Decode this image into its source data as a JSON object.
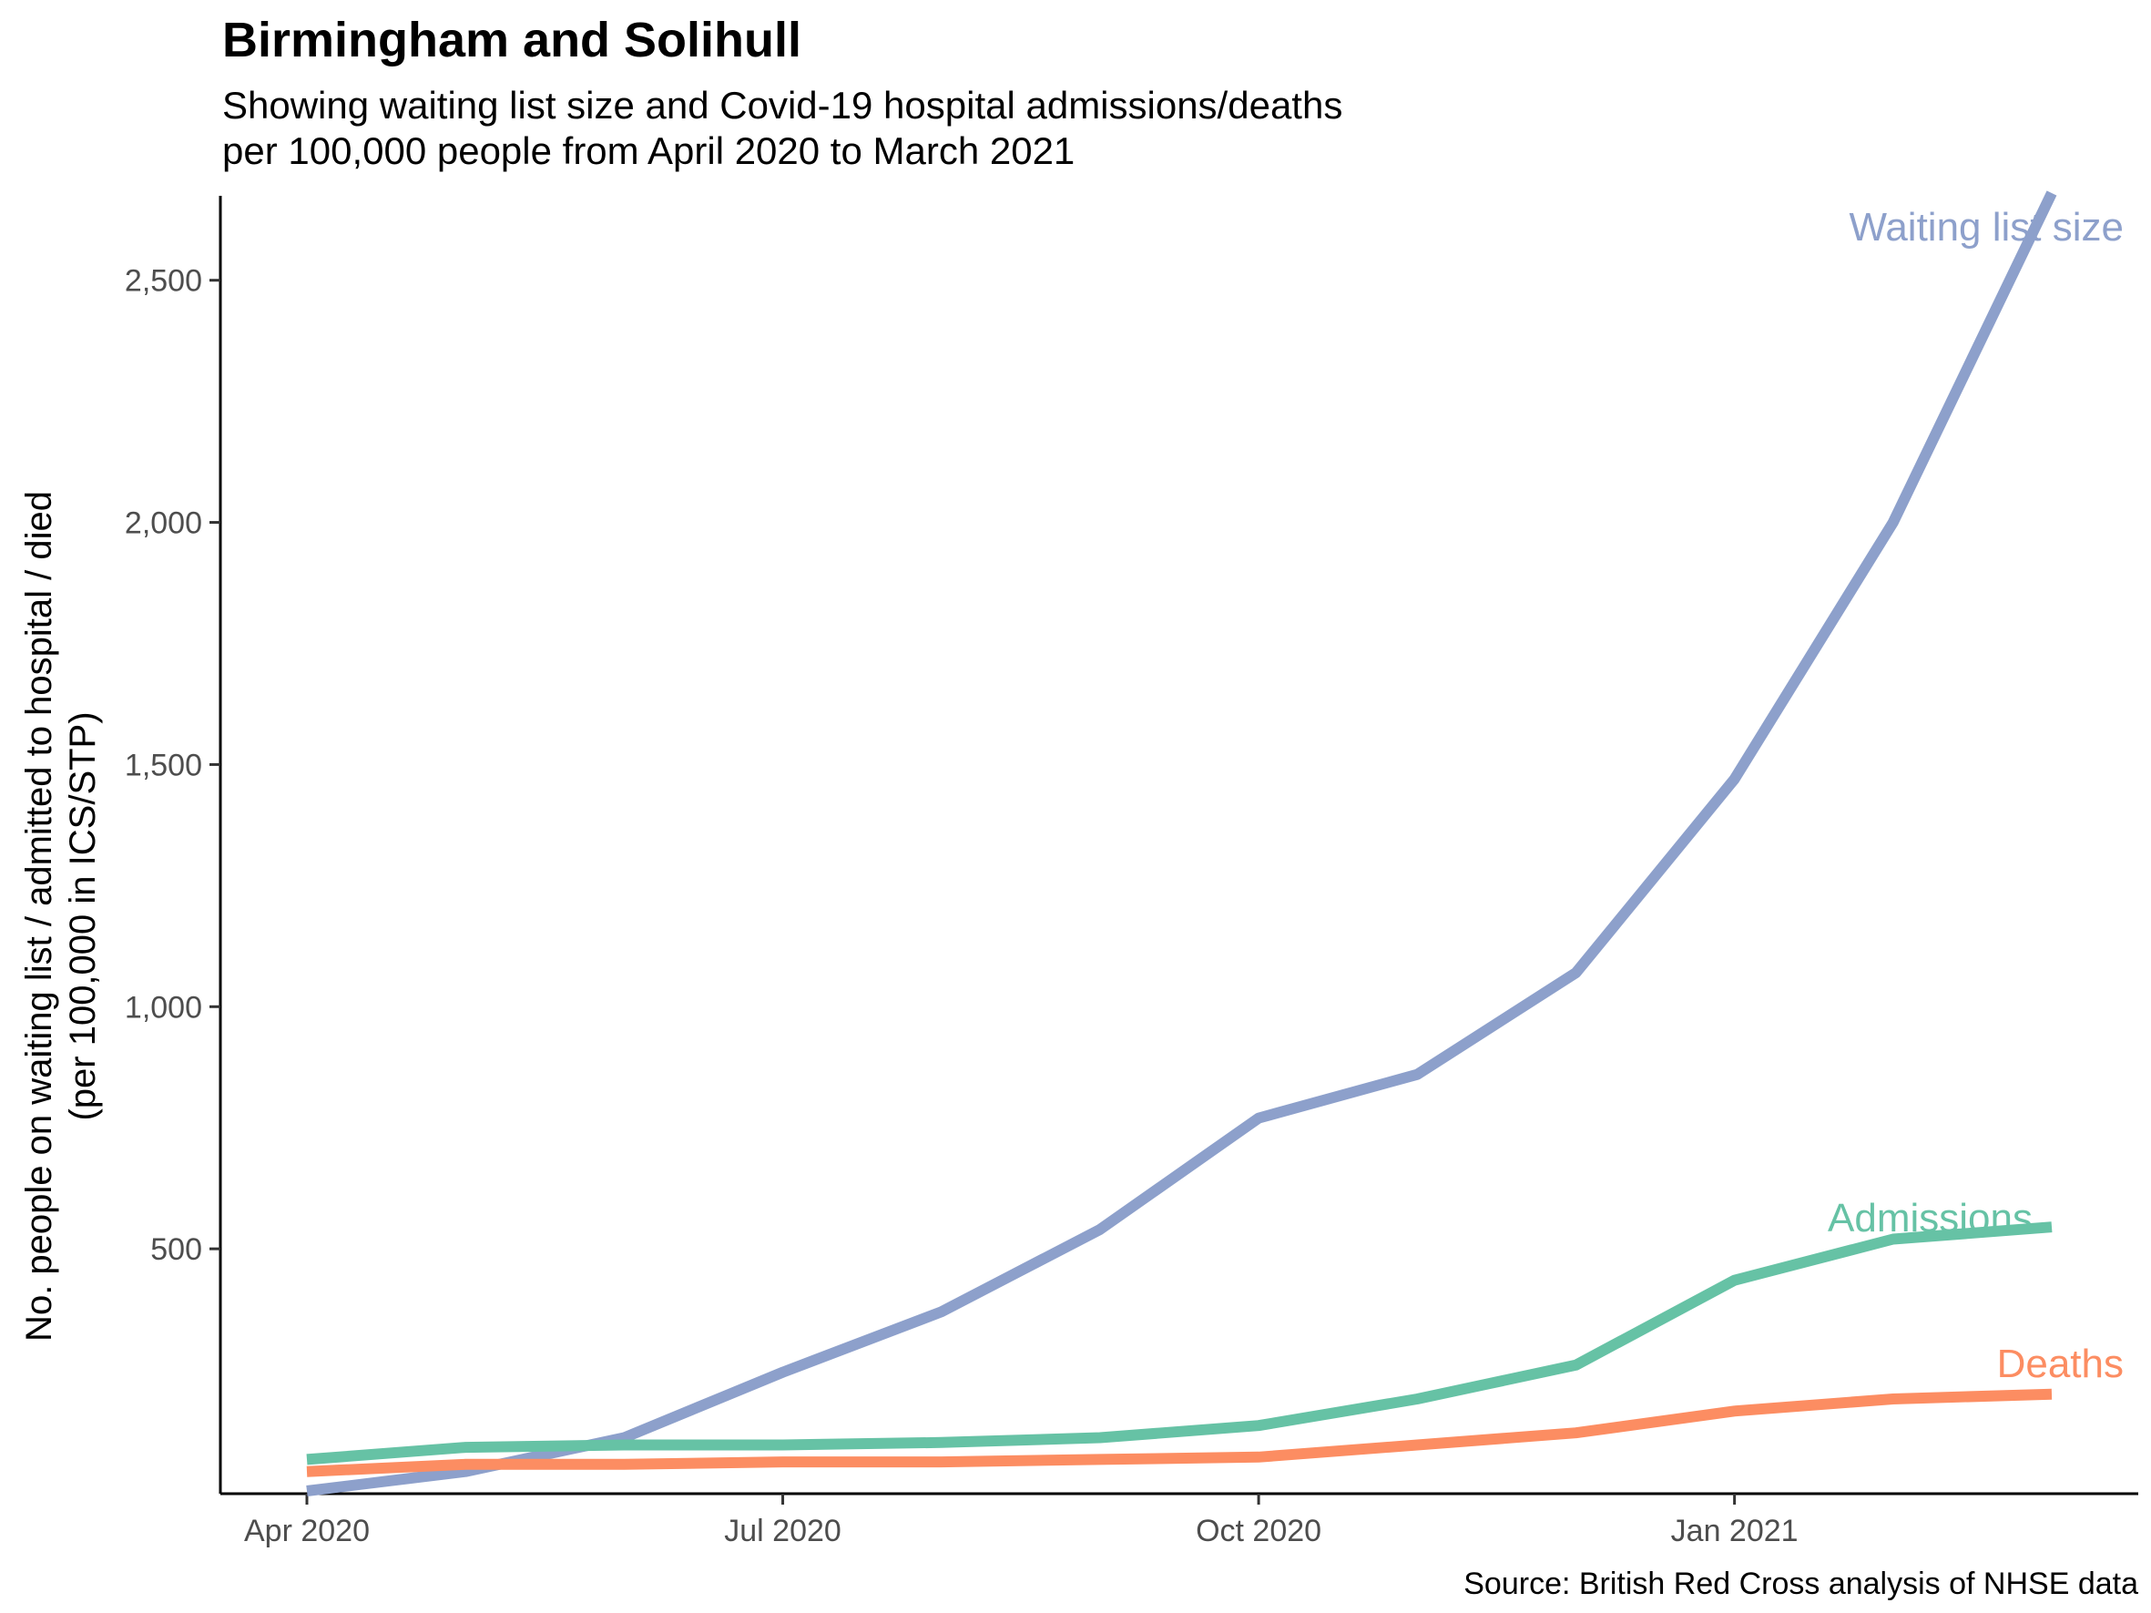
{
  "chart_data": {
    "type": "line",
    "title": "Birmingham and Solihull",
    "subtitle_lines": [
      "Showing waiting list size and Covid-19 hospital admissions/deaths",
      "per 100,000 people from April 2020 to March 2021"
    ],
    "ylabel_lines": [
      "No. people on waiting list / admitted to hospital / died",
      "(per 100,000 in ICS/STP)"
    ],
    "xlabel": "",
    "caption": "Source: British Red Cross analysis of NHSE data",
    "x": [
      "2020-04",
      "2020-05",
      "2020-06",
      "2020-07",
      "2020-08",
      "2020-09",
      "2020-10",
      "2020-11",
      "2020-12",
      "2021-01",
      "2021-02",
      "2021-03"
    ],
    "x_ticks": [
      {
        "date": "2020-04",
        "label": "Apr 2020"
      },
      {
        "date": "2020-07",
        "label": "Jul 2020"
      },
      {
        "date": "2020-10",
        "label": "Oct 2020"
      },
      {
        "date": "2021-01",
        "label": "Jan 2021"
      }
    ],
    "y_ticks": [
      {
        "value": 500,
        "label": "500"
      },
      {
        "value": 1000,
        "label": "1,000"
      },
      {
        "value": 1500,
        "label": "1,500"
      },
      {
        "value": 2000,
        "label": "2,000"
      },
      {
        "value": 2500,
        "label": "2,500"
      }
    ],
    "ylim": [
      0,
      2680
    ],
    "grid": false,
    "legend": "none (direct labels at line ends)",
    "series": [
      {
        "name": "Waiting list size",
        "color": "#8DA0CB",
        "values": [
          0,
          40,
          110,
          245,
          370,
          540,
          770,
          860,
          1070,
          1470,
          2000,
          2680
        ]
      },
      {
        "name": "Admissions",
        "color": "#66C2A5",
        "values": [
          65,
          90,
          95,
          95,
          100,
          110,
          135,
          190,
          260,
          435,
          520,
          545
        ]
      },
      {
        "name": "Deaths",
        "color": "#FC8D62",
        "values": [
          40,
          55,
          55,
          60,
          60,
          65,
          70,
          95,
          120,
          165,
          190,
          200
        ]
      }
    ]
  }
}
